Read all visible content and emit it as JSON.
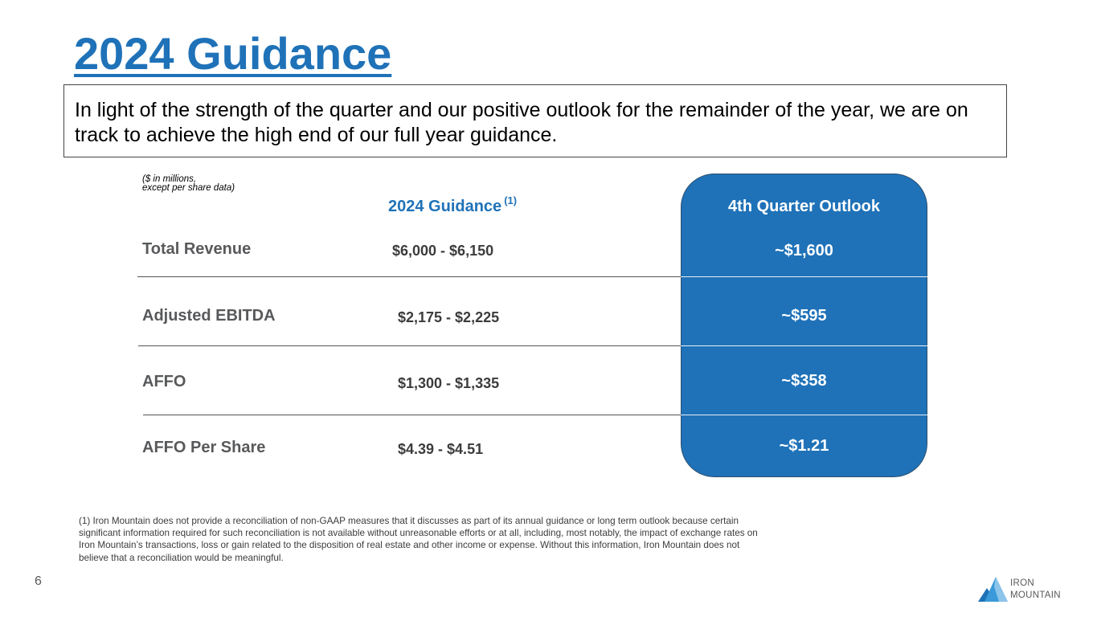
{
  "title": "2024 Guidance",
  "callout": "In light of the strength of the quarter and our positive outlook for the remainder of the year, we are on track to achieve the high end of our full year guidance.",
  "units_note": [
    "($ in millions,",
    "except per share data)"
  ],
  "columns": {
    "guidance": "2024 Guidance",
    "guidance_footnote_ref": "(1)",
    "outlook": "4th Quarter Outlook"
  },
  "rows": [
    {
      "label": "Total Revenue",
      "range": "$6,000 - $6,150",
      "outlook": "~$1,600"
    },
    {
      "label": "Adjusted EBITDA",
      "range": "$2,175 - $2,225",
      "outlook": "~$595"
    },
    {
      "label": "AFFO",
      "range": "$1,300 - $1,335",
      "outlook": "~$358"
    },
    {
      "label": "AFFO Per Share",
      "range": "$4.39 - $4.51",
      "outlook": "~$1.21"
    }
  ],
  "footnote": "(1) Iron Mountain does not provide a reconciliation of non-GAAP measures that it discusses as part of its annual guidance or long term outlook because certain significant information required for such reconciliation is not available without unreasonable efforts or at all, including, most notably, the impact of exchange rates on Iron Mountain’s transactions, loss or gain related to the disposition of real estate and other income or expense. Without this information, Iron Mountain does not believe that a reconciliation would be meaningful.",
  "page_number": "6",
  "logo": {
    "line1": "IRON",
    "line2": "MOUNTAIN"
  },
  "colors": {
    "accent": "#1f72b8",
    "text": "#58595b"
  }
}
